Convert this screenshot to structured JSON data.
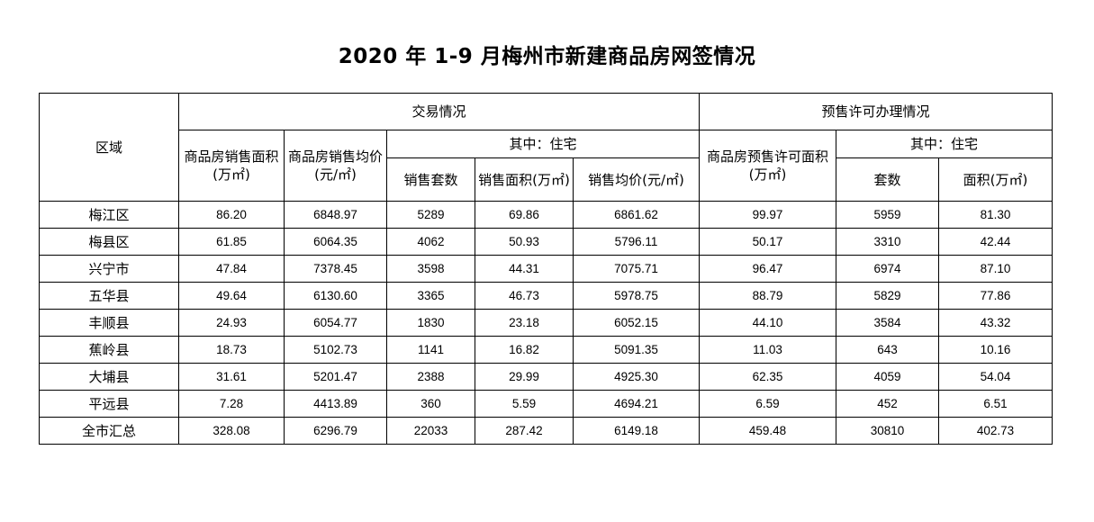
{
  "title": "2020 年 1-9 月梅州市新建商品房网签情况",
  "table": {
    "headers": {
      "region": "区域",
      "transaction_group": "交易情况",
      "presale_group": "预售许可办理情况",
      "sales_area": "商品房销售面积(万㎡)",
      "sales_avg_price": "商品房销售均价(元/㎡)",
      "residential_group": "其中：住宅",
      "res_units": "销售套数",
      "res_area": "销售面积(万㎡)",
      "res_avg_price": "销售均价(元/㎡)",
      "presale_area": "商品房预售许可面积(万㎡)",
      "presale_residential_group": "其中：住宅",
      "presale_units": "套数",
      "presale_res_area": "面积(万㎡)"
    },
    "rows": [
      [
        "梅江区",
        "86.20",
        "6848.97",
        "5289",
        "69.86",
        "6861.62",
        "99.97",
        "5959",
        "81.30"
      ],
      [
        "梅县区",
        "61.85",
        "6064.35",
        "4062",
        "50.93",
        "5796.11",
        "50.17",
        "3310",
        "42.44"
      ],
      [
        "兴宁市",
        "47.84",
        "7378.45",
        "3598",
        "44.31",
        "7075.71",
        "96.47",
        "6974",
        "87.10"
      ],
      [
        "五华县",
        "49.64",
        "6130.60",
        "3365",
        "46.73",
        "5978.75",
        "88.79",
        "5829",
        "77.86"
      ],
      [
        "丰顺县",
        "24.93",
        "6054.77",
        "1830",
        "23.18",
        "6052.15",
        "44.10",
        "3584",
        "43.32"
      ],
      [
        "蕉岭县",
        "18.73",
        "5102.73",
        "1141",
        "16.82",
        "5091.35",
        "11.03",
        "643",
        "10.16"
      ],
      [
        "大埔县",
        "31.61",
        "5201.47",
        "2388",
        "29.99",
        "4925.30",
        "62.35",
        "4059",
        "54.04"
      ],
      [
        "平远县",
        "7.28",
        "4413.89",
        "360",
        "5.59",
        "4694.21",
        "6.59",
        "452",
        "6.51"
      ],
      [
        "全市汇总",
        "328.08",
        "6296.79",
        "22033",
        "287.42",
        "6149.18",
        "459.48",
        "30810",
        "402.73"
      ]
    ]
  }
}
